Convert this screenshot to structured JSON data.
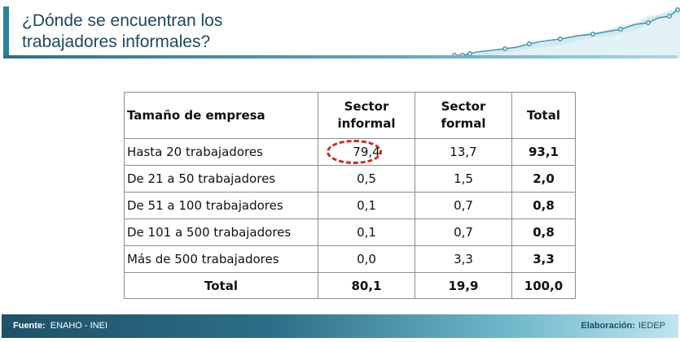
{
  "header": {
    "title_line1": "¿Dónde se encuentran los",
    "title_line2": "trabajadores informales?"
  },
  "table": {
    "headers": {
      "size": "Tamaño de empresa",
      "informal_line1": "Sector",
      "informal_line2": "informal",
      "formal_line1": "Sector",
      "formal_line2": "formal",
      "total": "Total"
    },
    "rows": [
      {
        "label": "Hasta 20 trabajadores",
        "informal": "79,4",
        "formal": "13,7",
        "total": "93,1"
      },
      {
        "label": "De 21 a 50 trabajadores",
        "informal": "0,5",
        "formal": "1,5",
        "total": "2,0"
      },
      {
        "label": "De 51 a 100 trabajadores",
        "informal": "0,1",
        "formal": "0,7",
        "total": "0,8"
      },
      {
        "label": "De 101 a 500 trabajadores",
        "informal": "0,1",
        "formal": "0,7",
        "total": "0,8"
      },
      {
        "label": "Más de 500 trabajadores",
        "informal": "0,0",
        "formal": "3,3",
        "total": "3,3"
      }
    ],
    "total_row": {
      "label": "Total",
      "informal": "80,1",
      "formal": "19,9",
      "total": "100,0"
    }
  },
  "footer": {
    "source_label": "Fuente:",
    "source_value": "ENAHO - INEI",
    "elab_label": "Elaboración:",
    "elab_value": "IEDEP"
  },
  "colors": {
    "accent": "#2f7f9c",
    "title": "#20485d",
    "highlight_circle": "#c02e22"
  }
}
